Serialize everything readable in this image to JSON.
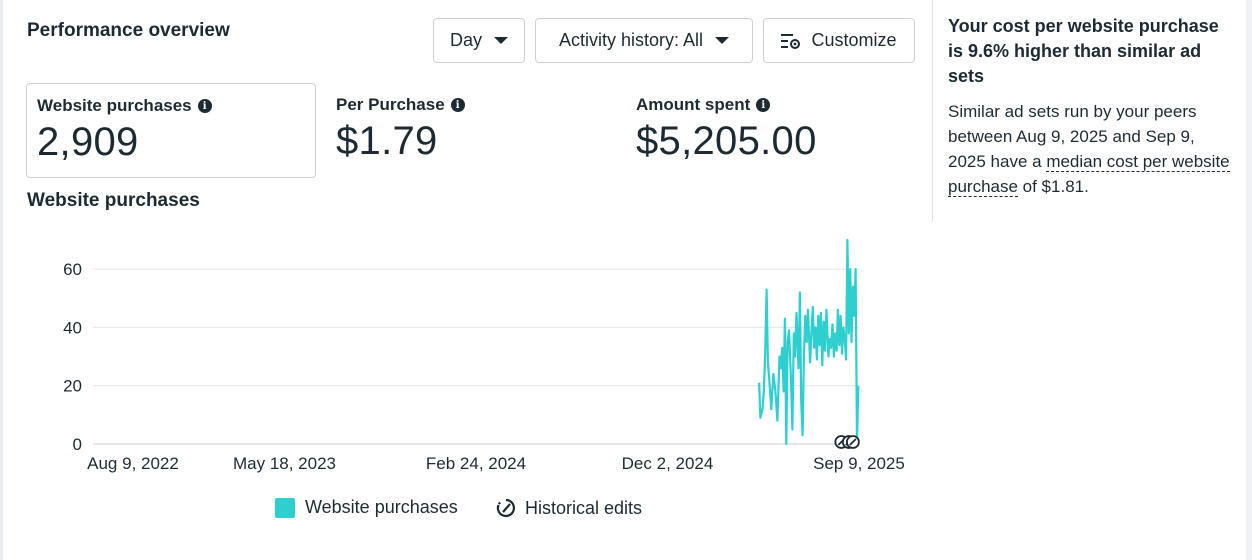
{
  "panel_title": "Performance overview",
  "controls": {
    "day_label": "Day",
    "activity_label": "Activity history: All",
    "customize_label": "Customize"
  },
  "metrics": [
    {
      "label": "Website purchases",
      "value": "2,909",
      "selected": true
    },
    {
      "label": "Per Purchase",
      "value": "$1.79",
      "selected": false
    },
    {
      "label": "Amount spent",
      "value": "$5,205.00",
      "selected": false
    }
  ],
  "chart_title": "Website purchases",
  "chart_data": {
    "type": "line",
    "title": "Website purchases",
    "xlabel": "",
    "ylabel": "",
    "x_tick_labels": [
      "Aug 9, 2022",
      "May 18, 2023",
      "Feb 24, 2024",
      "Dec 2, 2024",
      "Sep 9, 2025"
    ],
    "x_range": [
      "2022-08-09",
      "2025-09-09"
    ],
    "ylim": [
      0,
      70
    ],
    "y_ticks": [
      0,
      20,
      40,
      60
    ],
    "grid": true,
    "series": [
      {
        "name": "Website purchases",
        "color": "#2ecfcf",
        "points": [
          [
            "2025-04-15",
            21
          ],
          [
            "2025-04-17",
            9
          ],
          [
            "2025-04-20",
            12
          ],
          [
            "2025-04-22",
            18
          ],
          [
            "2025-04-24",
            31
          ],
          [
            "2025-04-26",
            53
          ],
          [
            "2025-04-28",
            28
          ],
          [
            "2025-04-30",
            22
          ],
          [
            "2025-05-03",
            12
          ],
          [
            "2025-05-06",
            24
          ],
          [
            "2025-05-09",
            18
          ],
          [
            "2025-05-12",
            8
          ],
          [
            "2025-05-15",
            30
          ],
          [
            "2025-05-17",
            26
          ],
          [
            "2025-05-19",
            33
          ],
          [
            "2025-05-21",
            18
          ],
          [
            "2025-05-23",
            43
          ],
          [
            "2025-05-25",
            0
          ],
          [
            "2025-05-27",
            35
          ],
          [
            "2025-05-29",
            39
          ],
          [
            "2025-06-01",
            22
          ],
          [
            "2025-06-03",
            5
          ],
          [
            "2025-06-05",
            38
          ],
          [
            "2025-06-07",
            30
          ],
          [
            "2025-06-09",
            45
          ],
          [
            "2025-06-12",
            26
          ],
          [
            "2025-06-14",
            52
          ],
          [
            "2025-06-16",
            15
          ],
          [
            "2025-06-18",
            3
          ],
          [
            "2025-06-20",
            30
          ],
          [
            "2025-06-22",
            44
          ],
          [
            "2025-06-24",
            35
          ],
          [
            "2025-06-26",
            46
          ],
          [
            "2025-06-29",
            28
          ],
          [
            "2025-07-01",
            38
          ],
          [
            "2025-07-03",
            47
          ],
          [
            "2025-07-05",
            33
          ],
          [
            "2025-07-07",
            40
          ],
          [
            "2025-07-09",
            29
          ],
          [
            "2025-07-11",
            44
          ],
          [
            "2025-07-13",
            34
          ],
          [
            "2025-07-15",
            45
          ],
          [
            "2025-07-17",
            27
          ],
          [
            "2025-07-19",
            42
          ],
          [
            "2025-07-21",
            32
          ],
          [
            "2025-07-23",
            46
          ],
          [
            "2025-07-26",
            30
          ],
          [
            "2025-07-28",
            36
          ],
          [
            "2025-07-30",
            33
          ],
          [
            "2025-08-01",
            41
          ],
          [
            "2025-08-03",
            30
          ],
          [
            "2025-08-05",
            38
          ],
          [
            "2025-08-07",
            32
          ],
          [
            "2025-08-09",
            46
          ],
          [
            "2025-08-11",
            34
          ],
          [
            "2025-08-13",
            44
          ],
          [
            "2025-08-15",
            31
          ],
          [
            "2025-08-17",
            40
          ],
          [
            "2025-08-19",
            36
          ],
          [
            "2025-08-21",
            29
          ],
          [
            "2025-08-23",
            70
          ],
          [
            "2025-08-25",
            38
          ],
          [
            "2025-08-27",
            60
          ],
          [
            "2025-08-29",
            35
          ],
          [
            "2025-08-31",
            54
          ],
          [
            "2025-09-02",
            44
          ],
          [
            "2025-09-04",
            60
          ],
          [
            "2025-09-06",
            1
          ],
          [
            "2025-09-08",
            20
          ]
        ]
      }
    ],
    "historical_edit_markers": [
      "2025-08-14",
      "2025-08-25",
      "2025-08-31"
    ]
  },
  "legend": {
    "website_purchases": "Website purchases",
    "historical_edits": "Historical edits"
  },
  "insight": {
    "title": "Your cost per website purchase is 9.6% higher than similar ad sets",
    "body_prefix": "Similar ad sets run by your peers between Aug 9, 2025 and Sep 9, 2025 have a ",
    "link_text": "median cost per website purchase",
    "body_suffix": " of $1.81."
  }
}
